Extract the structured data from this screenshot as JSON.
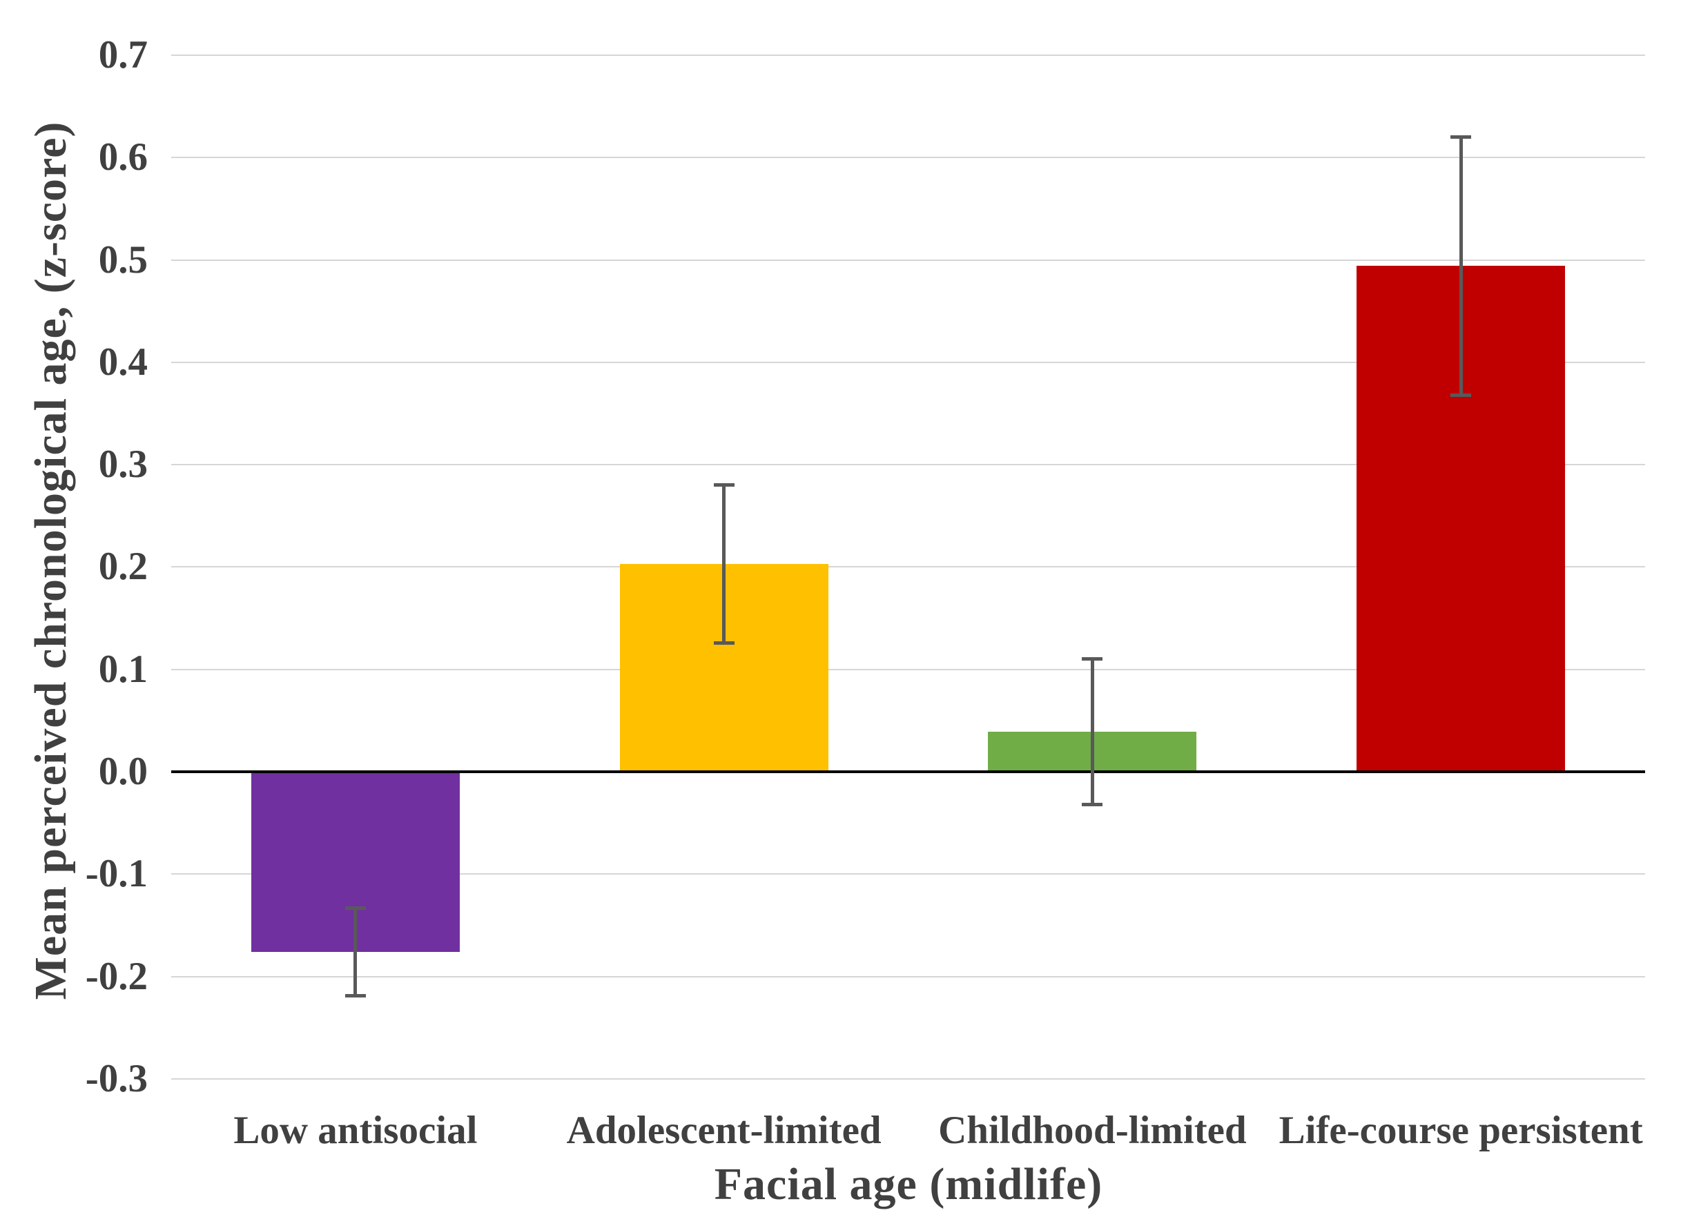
{
  "chart_data": {
    "type": "bar",
    "title": "",
    "xlabel": "Facial age (midlife)",
    "ylabel": "Mean perceived chronological age, (z-score)",
    "categories": [
      "Low antisocial",
      "Adolescent-limited",
      "Childhood-limited",
      "Life-course persistent"
    ],
    "values": [
      -0.176,
      0.203,
      0.039,
      0.494
    ],
    "error_low": [
      -0.219,
      0.126,
      -0.032,
      0.368
    ],
    "error_high": [
      -0.133,
      0.28,
      0.11,
      0.62
    ],
    "bar_colors": [
      "#7030A0",
      "#FFC000",
      "#70AD47",
      "#C00000"
    ],
    "ylim": [
      -0.3,
      0.7
    ],
    "ytick_step": 0.1,
    "ytick_labels": [
      "0.7",
      "0.6",
      "0.5",
      "0.4",
      "0.3",
      "0.2",
      "0.1",
      "0.0",
      "-0.1",
      "-0.2",
      "-0.3"
    ],
    "grid": true,
    "legend_position": "none",
    "colors": {
      "gridline": "#D6D6D6",
      "zero_axis": "#000000",
      "error_bar": "#595959",
      "text": "#404040",
      "background": "#FFFFFF"
    }
  }
}
